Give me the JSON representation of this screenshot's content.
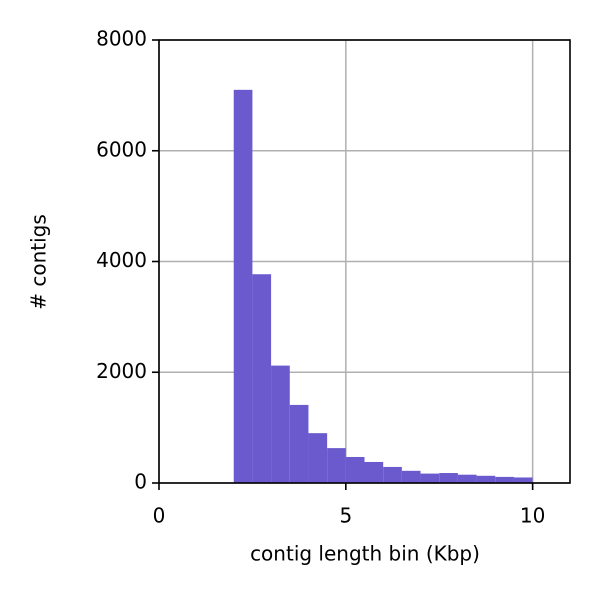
{
  "chart_data": {
    "type": "histogram",
    "xlabel": "contig length bin (Kbp)",
    "ylabel": "# contigs",
    "bins": [
      2,
      2.5,
      3,
      3.5,
      4,
      4.5,
      5,
      5.5,
      6,
      6.5,
      7,
      7.5,
      8,
      8.5,
      9,
      9.5,
      10
    ],
    "values": [
      7100,
      3770,
      2120,
      1410,
      900,
      630,
      470,
      380,
      290,
      220,
      170,
      180,
      150,
      130,
      110,
      100
    ],
    "color": "#6a5acd",
    "xlim": [
      0,
      11
    ],
    "ylim": [
      0,
      8000
    ],
    "xticks": [
      0,
      5,
      10
    ],
    "yticks": [
      0,
      2000,
      4000,
      6000,
      8000
    ],
    "grid": true
  }
}
